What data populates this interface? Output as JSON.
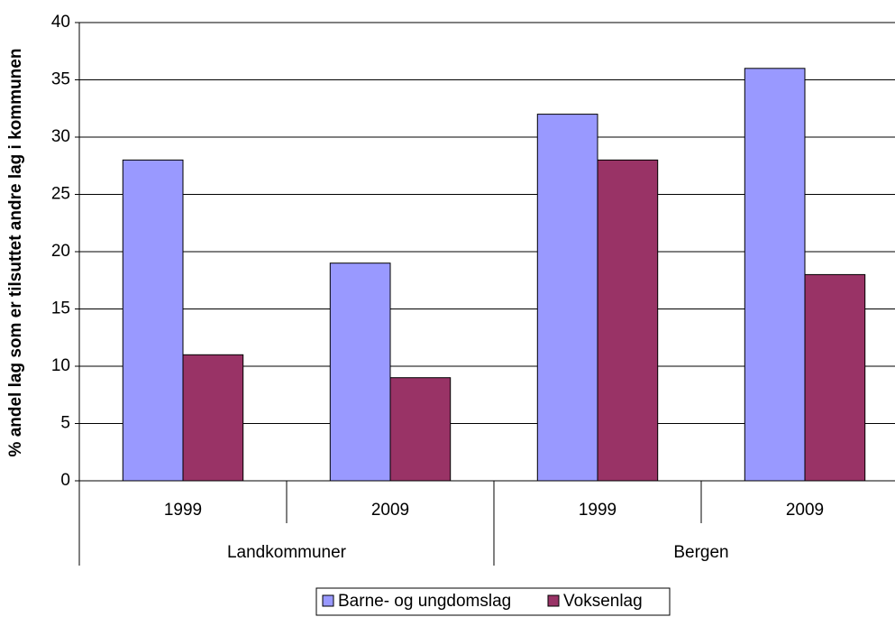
{
  "chart_data": {
    "type": "bar",
    "y_label": "% andel lag som er tilsuttet andre lag i kommunen",
    "categories": [
      "1999",
      "2009",
      "1999",
      "2009"
    ],
    "group_labels": [
      "Landkommuner",
      "Bergen"
    ],
    "series": [
      {
        "name": "Barne- og ungdomslag",
        "color": "#9999ff",
        "values": [
          28,
          19,
          32,
          36
        ]
      },
      {
        "name": "Voksenlag",
        "color": "#993366",
        "values": [
          11,
          9,
          28,
          18
        ]
      }
    ],
    "ylim": [
      0,
      40
    ],
    "yticks": [
      0,
      5,
      10,
      15,
      20,
      25,
      30,
      35,
      40
    ],
    "grid": true,
    "legend": "bottom"
  }
}
